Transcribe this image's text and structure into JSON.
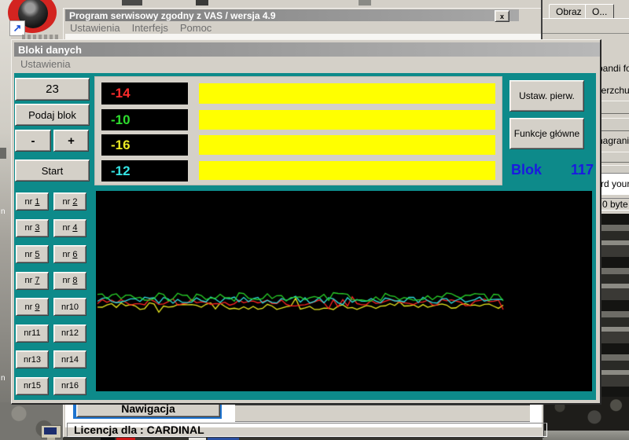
{
  "desktop": {
    "wallpaper_label_fragments": [
      "n",
      "n"
    ],
    "shortcut_arrow_glyph": "↗"
  },
  "window_main": {
    "title": "Program serwisowy zgodny z VAS / wersja 4.9",
    "close_glyph": "x",
    "menu_items": [
      "Ustawienia",
      "Interfejs",
      "Pomoc"
    ],
    "nav_button_label": "Nawigacja",
    "nav_focus_color": "#1e74d0",
    "status_text": "Licencja dla : CARDINAL"
  },
  "window_side": {
    "tabs": [
      "Obraz",
      "O..."
    ],
    "fragments": {
      "row1": "bandi fo",
      "row2": "ierzchu",
      "row3": "nagrania",
      "row4": "rd your",
      "status": "0 byte"
    }
  },
  "window_blocks": {
    "title": "Bloki danych",
    "menu_items": [
      "Ustawienia"
    ],
    "client_color": "#0d8a8a",
    "group_button": "23",
    "podaj_button": "Podaj blok",
    "minus_button": "-",
    "plus_button": "+",
    "start_button": "Start",
    "ustaw_button": "Ustaw. pierw.",
    "funkcje_button": "Funkcje główne",
    "block_word": "Blok",
    "block_number": "117",
    "block_color": "#1a1ae0",
    "bar_color": "#ffff00",
    "displays": [
      {
        "value": "-14",
        "color": "#ff2c2c"
      },
      {
        "value": "-10",
        "color": "#2ede2e"
      },
      {
        "value": "-16",
        "color": "#eaea24"
      },
      {
        "value": "-12",
        "color": "#35e4e4"
      }
    ],
    "nr_buttons": [
      "nr 1",
      "nr 2",
      "nr 3",
      "nr 4",
      "nr 5",
      "nr 6",
      "nr 7",
      "nr 8",
      "nr 9",
      "nr10",
      "nr11",
      "nr12",
      "nr13",
      "nr14",
      "nr15",
      "nr16"
    ],
    "graph": {
      "bg": "#000000",
      "x_start": 2,
      "x_end": 520,
      "step": 6,
      "series": [
        {
          "name": "-16",
          "color": "#e8e81e",
          "baseline": 146,
          "amplitude": 5.0,
          "seed": 7
        },
        {
          "name": "-14",
          "color": "#ff2222",
          "baseline": 142,
          "amplitude": 4.5,
          "seed": 3
        },
        {
          "name": "-12",
          "color": "#2ee0e0",
          "baseline": 139,
          "amplitude": 4.0,
          "seed": 5
        },
        {
          "name": "-10",
          "color": "#28d428",
          "baseline": 135,
          "amplitude": 5.5,
          "seed": 9
        }
      ]
    }
  }
}
